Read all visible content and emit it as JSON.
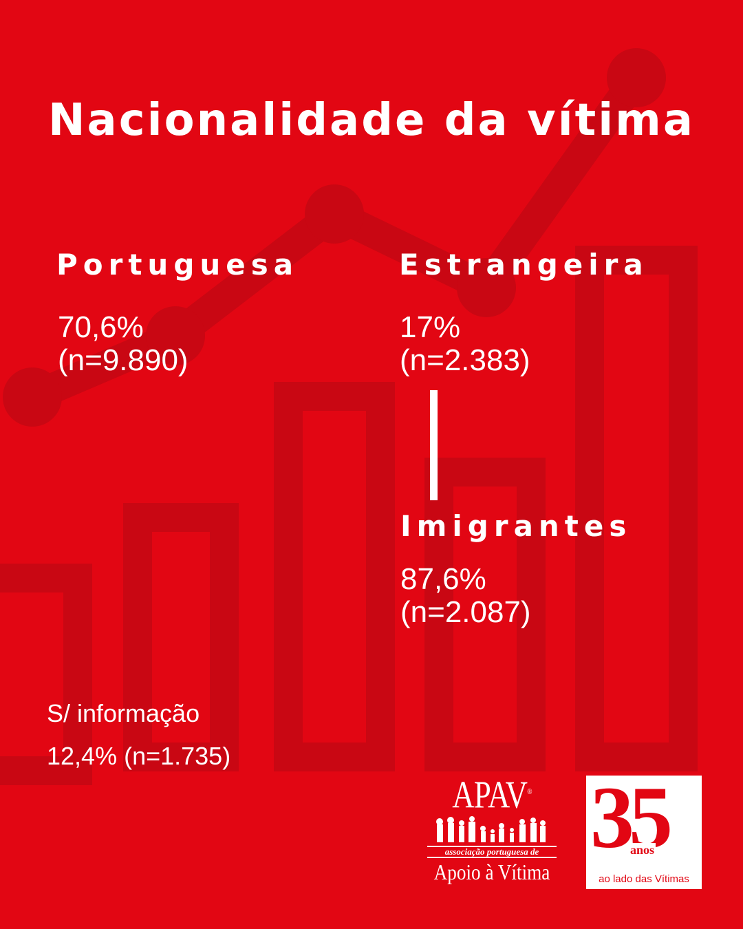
{
  "title": "Nacionalidade da vítima",
  "colors": {
    "background": "#e20613",
    "decor": "#c90713",
    "text": "#ffffff"
  },
  "portuguesa": {
    "label": "Portuguesa",
    "percent": "70,6%",
    "count": "(n=9.890)"
  },
  "estrangeira": {
    "label": "Estrangeira",
    "percent": "17%",
    "count": "(n=2.383)"
  },
  "imigrantes": {
    "label": "Imigrantes",
    "percent": "87,6%",
    "count": "(n=2.087)"
  },
  "sem_informacao": {
    "label": "S/ informação",
    "value": "12,4% (n=1.735)"
  },
  "logo_apav": {
    "brand": "APAV",
    "registered": "®",
    "subtitle": "associação portuguesa de",
    "tagline": "Apoio à Vítima"
  },
  "logo_35": {
    "number": "35",
    "anos": "anos",
    "tagline": "ao lado das Vítimas"
  }
}
